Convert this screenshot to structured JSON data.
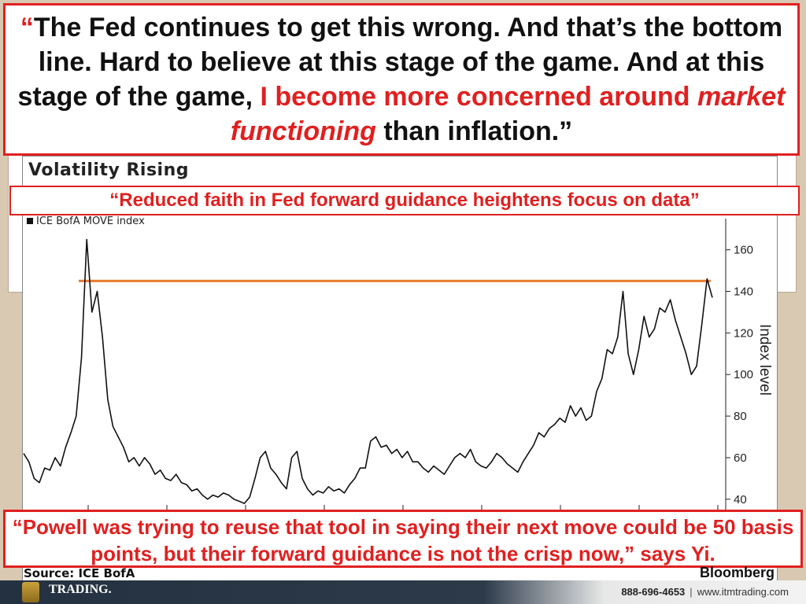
{
  "slide": {
    "quote_top": {
      "part1": "“",
      "part2": "The Fed continues to get this wrong. And that’s the bottom line. Hard to believe at this stage of the game. And at this stage of the game, ",
      "part3": "I become more concerned around ",
      "part4": "market functioning",
      "part5": " than inflation.”"
    },
    "quote_sub": "“Reduced faith in Fed forward guidance heightens focus on data”",
    "quote_bottom": "“Powell was trying to reuse that tool in saying their next move could be 50 basis points, but their forward guidance is not the crisp now,” says Yi.",
    "colors": {
      "accent_red": "#e02020",
      "reference_line": "#e87a2a",
      "series": "#111111"
    }
  },
  "chart_data": {
    "type": "line",
    "title": "Volatility Rising",
    "ylabel": "Index level",
    "ylim": [
      35,
      175
    ],
    "yticks": [
      40,
      60,
      80,
      100,
      120,
      140,
      160
    ],
    "legend": "top-left",
    "series": [
      {
        "name": "ICE BofA MOVE index",
        "values": [
          62,
          58,
          50,
          48,
          55,
          54,
          60,
          56,
          65,
          72,
          80,
          108,
          165,
          130,
          140,
          118,
          88,
          75,
          70,
          65,
          58,
          60,
          56,
          60,
          57,
          52,
          54,
          50,
          49,
          52,
          48,
          47,
          44,
          45,
          42,
          40,
          42,
          41,
          43,
          42,
          40,
          39,
          38,
          41,
          50,
          60,
          63,
          55,
          52,
          48,
          45,
          60,
          63,
          50,
          45,
          42,
          44,
          43,
          46,
          44,
          45,
          43,
          47,
          50,
          55,
          55,
          68,
          70,
          65,
          66,
          62,
          64,
          60,
          63,
          58,
          58,
          55,
          53,
          56,
          54,
          52,
          56,
          60,
          62,
          60,
          64,
          58,
          56,
          55,
          58,
          62,
          60,
          57,
          55,
          53,
          58,
          62,
          66,
          72,
          70,
          74,
          76,
          79,
          77,
          85,
          80,
          84,
          78,
          80,
          92,
          98,
          112,
          110,
          118,
          140,
          110,
          100,
          112,
          128,
          118,
          122,
          132,
          130,
          136,
          126,
          118,
          110,
          100,
          104,
          124,
          146,
          137
        ]
      }
    ],
    "reference_line": 145
  },
  "footer": {
    "logo_text": "TRADING.",
    "phone": "888-696-4653",
    "separator": "|",
    "website": "www.itmtrading.com"
  },
  "source": "Source: ICE BofA",
  "publisher": "Bloomberg"
}
